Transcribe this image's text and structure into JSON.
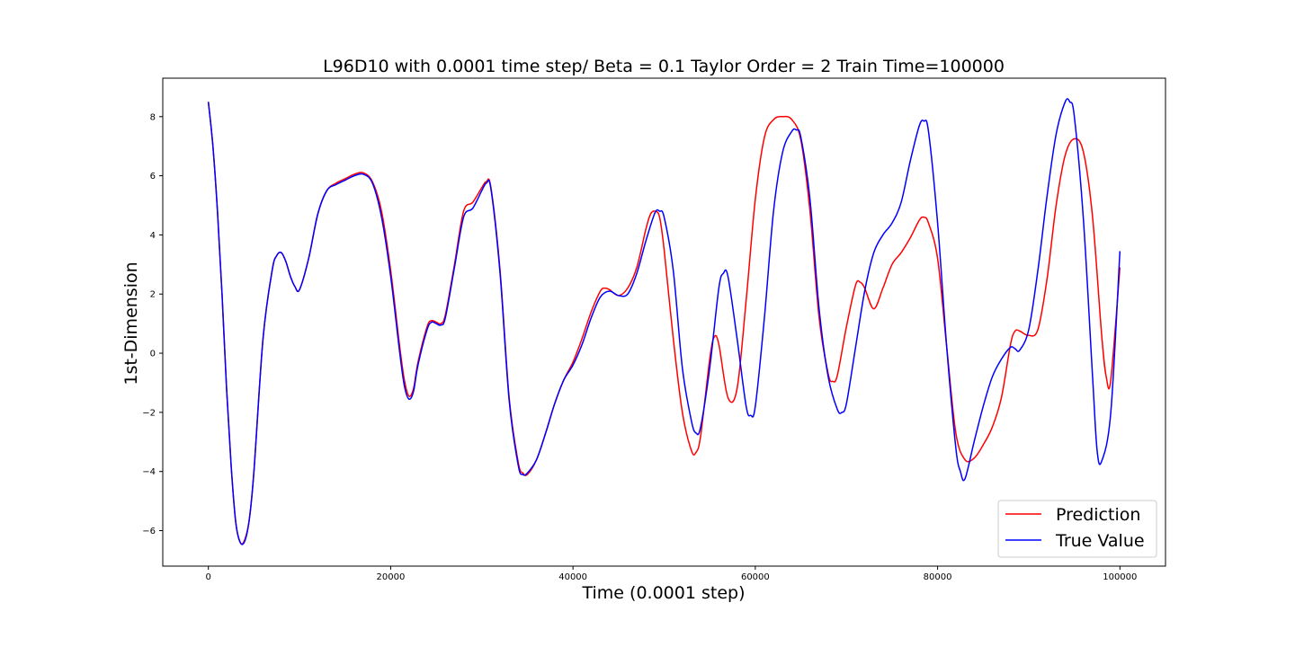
{
  "chart_data": {
    "type": "line",
    "title": "L96D10 with 0.0001 time step/ Beta = 0.1 Taylor Order = 2 Train Time=100000",
    "xlabel": "Time (0.0001 step)",
    "ylabel": "1st-Dimension",
    "xlim": [
      -5000,
      105000
    ],
    "ylim": [
      -7.2,
      9.3
    ],
    "xticks": [
      0,
      20000,
      40000,
      60000,
      80000,
      100000
    ],
    "xtick_labels": [
      "0",
      "20000",
      "40000",
      "60000",
      "80000",
      "100000"
    ],
    "yticks": [
      -6,
      -4,
      -2,
      0,
      2,
      4,
      6,
      8
    ],
    "ytick_labels": [
      "−6",
      "−4",
      "−2",
      "0",
      "2",
      "4",
      "6",
      "8"
    ],
    "grid": false,
    "legend_position": "lower-right",
    "series": [
      {
        "name": "Prediction",
        "color": "#ff0000",
        "x": [
          0,
          500,
          1000,
          1500,
          2000,
          2500,
          3000,
          3500,
          4000,
          4500,
          5000,
          6000,
          7000,
          7500,
          8000,
          8500,
          9000,
          9500,
          10000,
          11000,
          12000,
          13000,
          14000,
          15000,
          16000,
          17000,
          18000,
          19000,
          20000,
          21000,
          21500,
          22000,
          22500,
          23000,
          24000,
          24500,
          25000,
          25500,
          26000,
          27000,
          28000,
          29000,
          30000,
          30500,
          31000,
          32000,
          33000,
          34000,
          34500,
          35000,
          36000,
          37000,
          38000,
          39000,
          40000,
          41000,
          42000,
          43000,
          43500,
          44000,
          45000,
          46000,
          47000,
          48000,
          48500,
          49000,
          49500,
          50000,
          51000,
          52000,
          53000,
          53500,
          54000,
          55000,
          55500,
          56000,
          57000,
          58000,
          59000,
          60000,
          61000,
          62000,
          63000,
          64000,
          65000,
          66000,
          67000,
          68000,
          68500,
          69000,
          70000,
          71000,
          71500,
          72000,
          73000,
          74000,
          75000,
          76000,
          77000,
          78000,
          78500,
          79000,
          80000,
          81000,
          82000,
          83000,
          84000,
          85000,
          86000,
          87000,
          88000,
          88500,
          89000,
          90000,
          91000,
          92000,
          93000,
          94000,
          95000,
          96000,
          97000,
          98000,
          98500,
          99000,
          100000
        ],
        "y": [
          8.5,
          7.0,
          4.8,
          2.0,
          -1.2,
          -3.8,
          -5.7,
          -6.4,
          -6.3,
          -5.6,
          -4.0,
          0.5,
          2.8,
          3.3,
          3.4,
          3.1,
          2.6,
          2.25,
          2.15,
          3.2,
          4.7,
          5.5,
          5.75,
          5.9,
          6.05,
          6.1,
          5.8,
          4.8,
          2.8,
          0.2,
          -0.9,
          -1.45,
          -1.2,
          -0.3,
          0.9,
          1.1,
          1.05,
          1.0,
          1.3,
          3.0,
          4.8,
          5.1,
          5.6,
          5.8,
          5.6,
          2.8,
          -1.5,
          -3.7,
          -4.05,
          -4.1,
          -3.6,
          -2.7,
          -1.7,
          -0.9,
          -0.3,
          0.5,
          1.4,
          2.1,
          2.2,
          2.15,
          1.95,
          2.2,
          2.9,
          4.2,
          4.7,
          4.8,
          4.6,
          3.5,
          0.5,
          -2.0,
          -3.3,
          -3.35,
          -2.8,
          -0.2,
          0.55,
          0.3,
          -1.5,
          -1.2,
          1.8,
          5.2,
          7.3,
          7.9,
          8.0,
          7.9,
          7.2,
          4.8,
          1.2,
          -0.7,
          -0.95,
          -0.75,
          0.9,
          2.3,
          2.4,
          2.2,
          1.5,
          2.2,
          3.0,
          3.4,
          3.9,
          4.5,
          4.6,
          4.4,
          3.2,
          0.2,
          -2.7,
          -3.6,
          -3.55,
          -3.1,
          -2.5,
          -1.5,
          0.3,
          0.75,
          0.75,
          0.6,
          0.8,
          2.5,
          5.0,
          6.7,
          7.25,
          6.8,
          4.6,
          0.6,
          -0.8,
          -0.9,
          2.9
        ]
      },
      {
        "name": "True Value",
        "color": "#0000ff",
        "x": [
          0,
          500,
          1000,
          1500,
          2000,
          2500,
          3000,
          3500,
          4000,
          4500,
          5000,
          6000,
          7000,
          7500,
          8000,
          8500,
          9000,
          9500,
          10000,
          11000,
          12000,
          13000,
          14000,
          15000,
          16000,
          17000,
          18000,
          19000,
          20000,
          21000,
          21500,
          22000,
          22500,
          23000,
          24000,
          24500,
          25000,
          25500,
          26000,
          27000,
          28000,
          29000,
          30000,
          30500,
          31000,
          32000,
          33000,
          34000,
          34500,
          35000,
          36000,
          37000,
          38000,
          39000,
          40000,
          41000,
          42000,
          43000,
          44000,
          45000,
          46000,
          47000,
          48000,
          49000,
          49500,
          50000,
          51000,
          52000,
          53000,
          53500,
          54000,
          55000,
          56000,
          56500,
          57000,
          58000,
          59000,
          59500,
          60000,
          61000,
          62000,
          63000,
          64000,
          64500,
          65000,
          66000,
          67000,
          68000,
          69000,
          69500,
          70000,
          71000,
          72000,
          73000,
          74000,
          75000,
          76000,
          77000,
          78000,
          78500,
          79000,
          80000,
          81000,
          82000,
          82500,
          83000,
          84000,
          85000,
          86000,
          87000,
          88000,
          88500,
          89000,
          90000,
          91000,
          92000,
          93000,
          94000,
          94500,
          95000,
          96000,
          97000,
          97500,
          98000,
          99000,
          100000
        ],
        "y": [
          8.5,
          7.0,
          4.8,
          2.0,
          -1.2,
          -3.8,
          -5.7,
          -6.4,
          -6.35,
          -5.6,
          -4.0,
          0.5,
          2.8,
          3.3,
          3.4,
          3.1,
          2.6,
          2.25,
          2.15,
          3.2,
          4.7,
          5.5,
          5.7,
          5.85,
          6.0,
          6.05,
          5.75,
          4.6,
          2.6,
          0.0,
          -1.1,
          -1.55,
          -1.3,
          -0.4,
          0.8,
          1.05,
          1.0,
          0.95,
          1.2,
          2.9,
          4.6,
          4.9,
          5.5,
          5.75,
          5.55,
          2.7,
          -1.6,
          -3.8,
          -4.1,
          -4.05,
          -3.6,
          -2.7,
          -1.7,
          -0.9,
          -0.4,
          0.3,
          1.2,
          1.9,
          2.1,
          1.95,
          2.0,
          2.7,
          3.8,
          4.75,
          4.8,
          4.6,
          2.8,
          -0.5,
          -2.3,
          -2.7,
          -2.5,
          -0.5,
          2.2,
          2.7,
          2.6,
          0.5,
          -1.8,
          -2.1,
          -1.8,
          1.2,
          4.8,
          6.8,
          7.5,
          7.55,
          7.3,
          5.2,
          1.5,
          -0.8,
          -1.9,
          -2.0,
          -1.7,
          0.2,
          2.1,
          3.4,
          4.0,
          4.4,
          5.1,
          6.5,
          7.7,
          7.85,
          7.5,
          4.4,
          0.2,
          -3.2,
          -4.0,
          -4.25,
          -3.0,
          -1.8,
          -0.8,
          -0.2,
          0.2,
          0.15,
          0.1,
          0.8,
          2.8,
          5.3,
          7.4,
          8.5,
          8.5,
          8.0,
          4.5,
          -0.8,
          -3.3,
          -3.65,
          -2.0,
          3.45
        ]
      }
    ]
  }
}
